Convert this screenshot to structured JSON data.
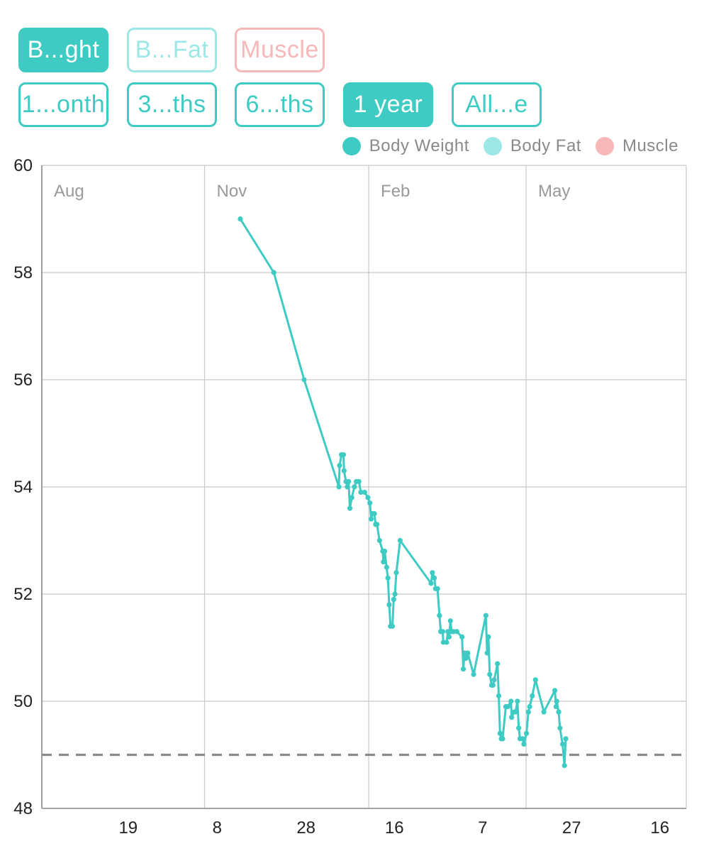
{
  "type_toggles": [
    {
      "label": "B...ght",
      "state": "active",
      "color": "#3ecbc3"
    },
    {
      "label": "B...Fat",
      "state": "inactive",
      "color": "#9de8e6"
    },
    {
      "label": "Muscle",
      "state": "inactive",
      "color": "#f6b8b8"
    }
  ],
  "range_buttons": [
    {
      "label": "1...onth",
      "active": false
    },
    {
      "label": "3...ths",
      "active": false
    },
    {
      "label": "6...ths",
      "active": false
    },
    {
      "label": "1 year",
      "active": true
    },
    {
      "label": "All...e",
      "active": false
    }
  ],
  "legend": [
    {
      "label": "Body Weight",
      "color": "#3ecbc3"
    },
    {
      "label": "Body Fat",
      "color": "#9de8e6"
    },
    {
      "label": "Muscle",
      "color": "#f6b8b8"
    }
  ],
  "chart_data": {
    "type": "line",
    "ylim": [
      48,
      60
    ],
    "y_ticks": [
      60,
      58,
      56,
      54,
      52,
      50,
      48
    ],
    "month_labels": [
      "Aug",
      "Nov",
      "Feb",
      "May"
    ],
    "x_tick_labels": [
      "19",
      "8",
      "28",
      "16",
      "7",
      "27",
      "16"
    ],
    "target_line": 49,
    "grid": true,
    "legend_position": "top-right",
    "series": [
      {
        "name": "Body Weight",
        "color": "#3ecbc3",
        "points": [
          [
            0.308,
            59.0
          ],
          [
            0.36,
            58.0
          ],
          [
            0.407,
            56.0
          ],
          [
            0.461,
            54.0
          ],
          [
            0.462,
            54.4
          ],
          [
            0.465,
            54.6
          ],
          [
            0.468,
            54.6
          ],
          [
            0.469,
            54.3
          ],
          [
            0.472,
            54.1
          ],
          [
            0.474,
            54.0
          ],
          [
            0.476,
            54.1
          ],
          [
            0.478,
            53.6
          ],
          [
            0.481,
            53.8
          ],
          [
            0.485,
            54.0
          ],
          [
            0.488,
            54.1
          ],
          [
            0.492,
            54.1
          ],
          [
            0.495,
            53.9
          ],
          [
            0.501,
            53.9
          ],
          [
            0.506,
            53.8
          ],
          [
            0.509,
            53.7
          ],
          [
            0.511,
            53.4
          ],
          [
            0.513,
            53.5
          ],
          [
            0.516,
            53.5
          ],
          [
            0.518,
            53.3
          ],
          [
            0.52,
            53.3
          ],
          [
            0.524,
            53.0
          ],
          [
            0.529,
            52.8
          ],
          [
            0.53,
            52.6
          ],
          [
            0.532,
            52.8
          ],
          [
            0.535,
            52.5
          ],
          [
            0.537,
            52.3
          ],
          [
            0.539,
            51.8
          ],
          [
            0.541,
            51.4
          ],
          [
            0.544,
            51.4
          ],
          [
            0.546,
            51.9
          ],
          [
            0.548,
            52.0
          ],
          [
            0.55,
            52.4
          ],
          [
            0.556,
            53.0
          ],
          [
            0.604,
            52.2
          ],
          [
            0.606,
            52.4
          ],
          [
            0.609,
            52.3
          ],
          [
            0.611,
            52.1
          ],
          [
            0.614,
            52.1
          ],
          [
            0.617,
            51.6
          ],
          [
            0.619,
            51.3
          ],
          [
            0.622,
            51.3
          ],
          [
            0.623,
            51.1
          ],
          [
            0.628,
            51.1
          ],
          [
            0.63,
            51.3
          ],
          [
            0.632,
            51.2
          ],
          [
            0.634,
            51.5
          ],
          [
            0.636,
            51.3
          ],
          [
            0.639,
            51.3
          ],
          [
            0.644,
            51.3
          ],
          [
            0.652,
            51.2
          ],
          [
            0.654,
            50.6
          ],
          [
            0.656,
            50.9
          ],
          [
            0.658,
            50.8
          ],
          [
            0.661,
            50.9
          ],
          [
            0.67,
            50.5
          ],
          [
            0.689,
            51.6
          ],
          [
            0.691,
            50.9
          ],
          [
            0.693,
            51.2
          ],
          [
            0.695,
            50.5
          ],
          [
            0.698,
            50.3
          ],
          [
            0.7,
            50.3
          ],
          [
            0.702,
            50.4
          ],
          [
            0.707,
            50.7
          ],
          [
            0.709,
            50.1
          ],
          [
            0.711,
            49.4
          ],
          [
            0.713,
            49.3
          ],
          [
            0.715,
            49.3
          ],
          [
            0.72,
            49.9
          ],
          [
            0.723,
            49.9
          ],
          [
            0.728,
            50.0
          ],
          [
            0.729,
            49.7
          ],
          [
            0.733,
            49.8
          ],
          [
            0.735,
            49.8
          ],
          [
            0.738,
            50.0
          ],
          [
            0.74,
            49.5
          ],
          [
            0.742,
            49.3
          ],
          [
            0.746,
            49.3
          ],
          [
            0.748,
            49.2
          ],
          [
            0.752,
            49.4
          ],
          [
            0.755,
            49.8
          ],
          [
            0.757,
            49.9
          ],
          [
            0.761,
            50.1
          ],
          [
            0.766,
            50.4
          ],
          [
            0.779,
            49.8
          ],
          [
            0.796,
            50.2
          ],
          [
            0.798,
            49.9
          ],
          [
            0.799,
            50.0
          ],
          [
            0.802,
            49.8
          ],
          [
            0.804,
            49.5
          ],
          [
            0.808,
            49.2
          ],
          [
            0.811,
            48.8
          ],
          [
            0.813,
            49.3
          ]
        ]
      }
    ]
  }
}
